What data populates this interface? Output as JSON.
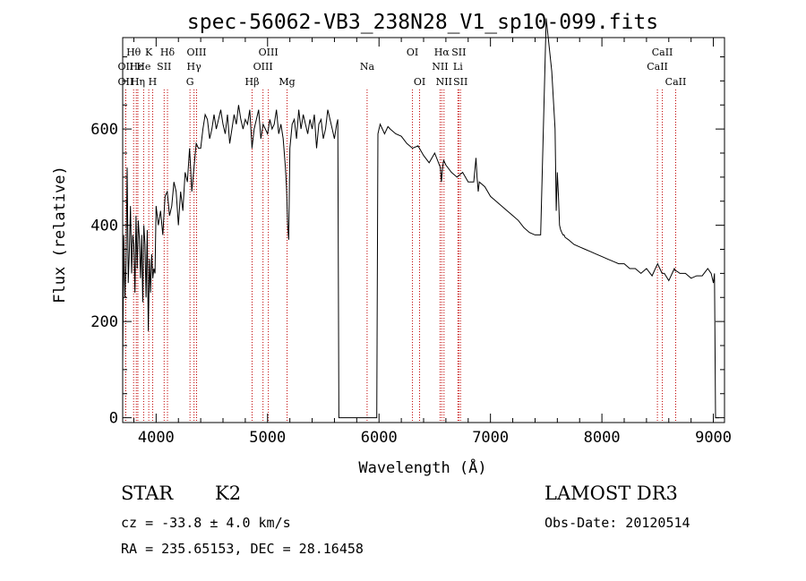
{
  "chart_data": {
    "type": "line",
    "title": "spec-56062-VB3_238N28_V1_sp10-099.fits",
    "xlabel": "Wavelength (Å)",
    "ylabel": "Flux (relative)",
    "xlim": [
      3700,
      9100
    ],
    "ylim": [
      -10,
      790
    ],
    "xticks": [
      4000,
      5000,
      6000,
      7000,
      8000,
      9000
    ],
    "yticks": [
      0,
      200,
      400,
      600
    ],
    "grid": false,
    "legend": "none",
    "line_color": "#000000",
    "marker_color": "#c00000",
    "series": [
      {
        "name": "flux",
        "x": [
          3700,
          3710,
          3720,
          3730,
          3740,
          3750,
          3760,
          3770,
          3780,
          3790,
          3800,
          3810,
          3820,
          3830,
          3840,
          3850,
          3860,
          3870,
          3880,
          3890,
          3900,
          3910,
          3920,
          3930,
          3940,
          3950,
          3960,
          3970,
          3980,
          3990,
          4000,
          4020,
          4040,
          4060,
          4080,
          4100,
          4120,
          4140,
          4160,
          4180,
          4200,
          4220,
          4240,
          4260,
          4280,
          4300,
          4320,
          4340,
          4360,
          4380,
          4400,
          4420,
          4440,
          4460,
          4480,
          4500,
          4520,
          4540,
          4560,
          4580,
          4600,
          4620,
          4640,
          4660,
          4680,
          4700,
          4720,
          4740,
          4760,
          4780,
          4800,
          4820,
          4840,
          4860,
          4880,
          4900,
          4920,
          4940,
          4960,
          4980,
          5000,
          5020,
          5040,
          5060,
          5080,
          5100,
          5120,
          5140,
          5160,
          5170,
          5180,
          5190,
          5200,
          5220,
          5240,
          5260,
          5280,
          5300,
          5320,
          5340,
          5360,
          5380,
          5400,
          5420,
          5440,
          5460,
          5480,
          5500,
          5520,
          5540,
          5560,
          5580,
          5600,
          5620,
          5630,
          5640,
          5650,
          5660,
          5980,
          5990,
          6000,
          6010,
          6030,
          6050,
          6080,
          6100,
          6150,
          6200,
          6250,
          6300,
          6350,
          6400,
          6450,
          6500,
          6550,
          6560,
          6570,
          6580,
          6600,
          6650,
          6700,
          6750,
          6800,
          6850,
          6870,
          6880,
          6890,
          6900,
          6950,
          7000,
          7050,
          7100,
          7150,
          7200,
          7250,
          7300,
          7350,
          7400,
          7450,
          7500,
          7550,
          7580,
          7590,
          7600,
          7610,
          7620,
          7630,
          7640,
          7650,
          7660,
          7670,
          7700,
          7750,
          7800,
          7850,
          7900,
          7950,
          8000,
          8050,
          8100,
          8150,
          8200,
          8250,
          8300,
          8350,
          8400,
          8450,
          8500,
          8520,
          8540,
          8560,
          8600,
          8650,
          8660,
          8670,
          8700,
          8750,
          8800,
          8850,
          8900,
          8950,
          8980,
          9000,
          9010,
          9020,
          9030,
          9040,
          9050
        ],
        "y": [
          110,
          380,
          250,
          320,
          520,
          280,
          350,
          440,
          300,
          380,
          360,
          260,
          420,
          310,
          410,
          370,
          290,
          380,
          240,
          400,
          360,
          250,
          390,
          180,
          330,
          260,
          340,
          290,
          310,
          300,
          440,
          400,
          430,
          380,
          460,
          470,
          420,
          440,
          490,
          470,
          400,
          470,
          430,
          510,
          490,
          560,
          470,
          520,
          570,
          560,
          560,
          600,
          630,
          620,
          580,
          600,
          630,
          600,
          620,
          640,
          610,
          590,
          630,
          570,
          600,
          630,
          610,
          650,
          620,
          600,
          620,
          610,
          640,
          560,
          600,
          620,
          640,
          580,
          610,
          600,
          590,
          620,
          600,
          610,
          640,
          590,
          610,
          580,
          520,
          480,
          400,
          370,
          560,
          610,
          620,
          580,
          640,
          600,
          630,
          610,
          590,
          620,
          600,
          630,
          560,
          610,
          620,
          580,
          600,
          640,
          620,
          600,
          580,
          610,
          620,
          0,
          0,
          0,
          0,
          590,
          600,
          610,
          600,
          590,
          605,
          600,
          590,
          585,
          570,
          560,
          565,
          545,
          530,
          550,
          520,
          490,
          520,
          535,
          525,
          510,
          500,
          510,
          490,
          490,
          540,
          500,
          470,
          490,
          480,
          460,
          450,
          440,
          430,
          420,
          410,
          395,
          385,
          380,
          380,
          830,
          720,
          600,
          430,
          510,
          460,
          400,
          390,
          385,
          380,
          380,
          375,
          370,
          360,
          355,
          350,
          345,
          340,
          335,
          330,
          325,
          320,
          320,
          310,
          310,
          300,
          310,
          295,
          320,
          310,
          300,
          300,
          285,
          310,
          305,
          305,
          300,
          300,
          290,
          295,
          295,
          310,
          300,
          280,
          300,
          0,
          0,
          0,
          0
        ]
      }
    ],
    "line_markers": [
      {
        "label": "Hθ",
        "x": 3798,
        "row": 1
      },
      {
        "label": "OII",
        "x": 3727,
        "row": 2
      },
      {
        "label": "OII",
        "x": 3727,
        "row": 3
      },
      {
        "label": "Hε",
        "x": 3822,
        "row": 2
      },
      {
        "label": "Hη",
        "x": 3836,
        "row": 3
      },
      {
        "label": "K",
        "x": 3934,
        "row": 1
      },
      {
        "label": "He",
        "x": 3888,
        "row": 2
      },
      {
        "label": "H",
        "x": 3969,
        "row": 3
      },
      {
        "label": "SII",
        "x": 4072,
        "row": 2
      },
      {
        "label": "Hδ",
        "x": 4102,
        "row": 1
      },
      {
        "label": "OIII",
        "x": 4363,
        "row": 1
      },
      {
        "label": "Hγ",
        "x": 4340,
        "row": 2
      },
      {
        "label": "G",
        "x": 4304,
        "row": 3
      },
      {
        "label": "OIII",
        "x": 5007,
        "row": 1
      },
      {
        "label": "OIII",
        "x": 4959,
        "row": 2
      },
      {
        "label": "Hβ",
        "x": 4861,
        "row": 3
      },
      {
        "label": "Mg",
        "x": 5175,
        "row": 3
      },
      {
        "label": "Na",
        "x": 5893,
        "row": 2
      },
      {
        "label": "OI",
        "x": 6300,
        "row": 1
      },
      {
        "label": "OI",
        "x": 6364,
        "row": 3
      },
      {
        "label": "Hα",
        "x": 6563,
        "row": 1
      },
      {
        "label": "SII",
        "x": 6716,
        "row": 1
      },
      {
        "label": "NII",
        "x": 6548,
        "row": 2
      },
      {
        "label": "Li",
        "x": 6708,
        "row": 2
      },
      {
        "label": "NII",
        "x": 6583,
        "row": 3
      },
      {
        "label": "SII",
        "x": 6731,
        "row": 3
      },
      {
        "label": "CaII",
        "x": 8542,
        "row": 1
      },
      {
        "label": "CaII",
        "x": 8498,
        "row": 2
      },
      {
        "label": "CaII",
        "x": 8662,
        "row": 3
      }
    ]
  },
  "info": {
    "object_class": "STAR",
    "subclass": "K2",
    "survey": "LAMOST DR3",
    "cz": "cz = -33.8 ± 4.0 km/s",
    "obs_date": "Obs-Date: 20120514",
    "coords": "RA = 235.65153, DEC =  28.16458"
  }
}
